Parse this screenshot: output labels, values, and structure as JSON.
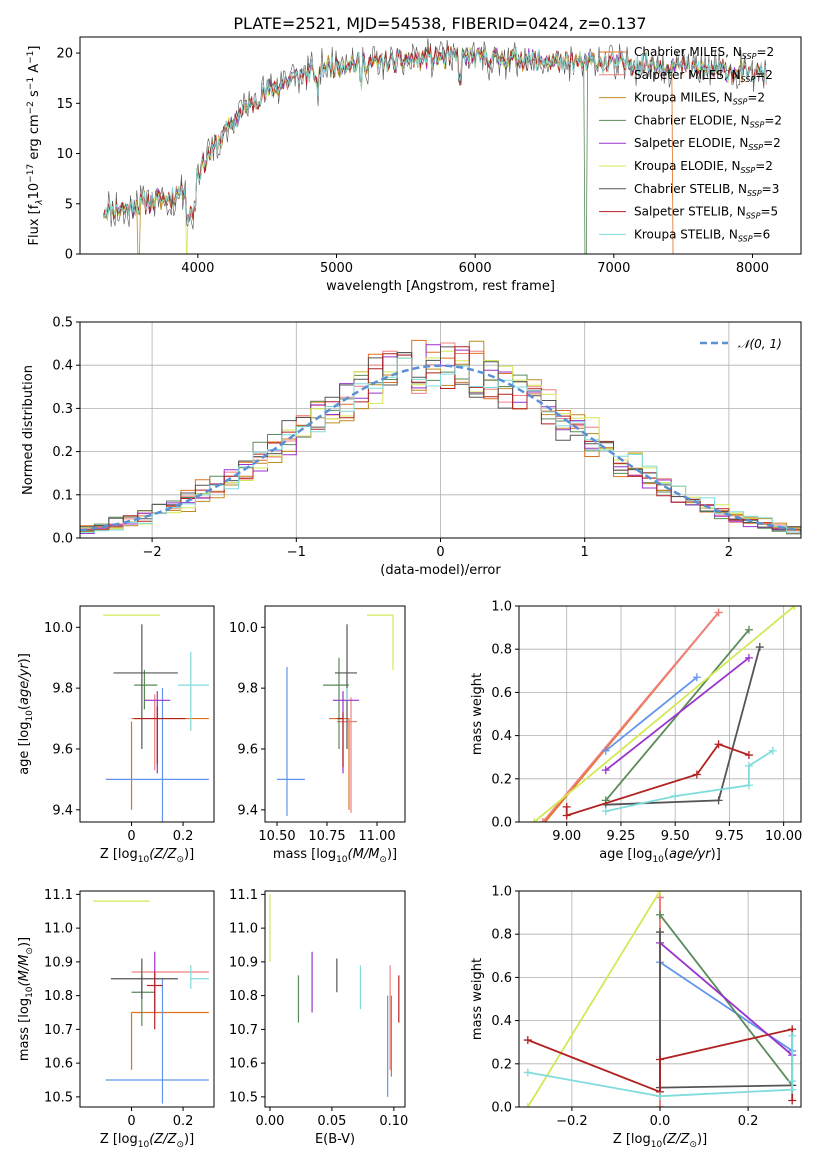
{
  "title": "PLATE=2521, MJD=54538, FIBERID=0424, z=0.137",
  "models": [
    {
      "name": "Chabrier MILES, N",
      "sub": "SSP",
      "tail": "=2",
      "color": "#e07020"
    },
    {
      "name": "Salpeter MILES, N",
      "sub": "SSP",
      "tail": "=2",
      "color": "#f08080"
    },
    {
      "name": "Kroupa MILES, N",
      "sub": "SSP",
      "tail": "=2",
      "color": "#c08a20"
    },
    {
      "name": "Chabrier ELODIE, N",
      "sub": "SSP",
      "tail": "=2",
      "color": "#5a8a5a"
    },
    {
      "name": "Salpeter ELODIE, N",
      "sub": "SSP",
      "tail": "=2",
      "color": "#9932cc"
    },
    {
      "name": "Kroupa ELODIE, N",
      "sub": "SSP",
      "tail": "=2",
      "color": "#d4e857"
    },
    {
      "name": "Chabrier STELIB, N",
      "sub": "SSP",
      "tail": "=3",
      "color": "#555555"
    },
    {
      "name": "Salpeter STELIB, N",
      "sub": "SSP",
      "tail": "=5",
      "color": "#b22222"
    },
    {
      "name": "Kroupa STELIB, N",
      "sub": "SSP",
      "tail": "=6",
      "color": "#80dcdc"
    }
  ],
  "colors": {
    "kroupa_miles_line": "#6495ed",
    "gauss": "#5b8fd6",
    "grid": "#b0b0b0"
  },
  "chart_data": [
    {
      "id": "spectrum",
      "type": "line",
      "xlabel": "wavelength [Angstrom, rest frame]",
      "ylabel_parts": [
        "Flux [f",
        "λ",
        "10",
        "−17",
        " erg cm",
        "−2",
        " s",
        "−1",
        " A",
        "−1",
        "]"
      ],
      "xlim": [
        3150,
        8350
      ],
      "ylim": [
        0,
        21.6
      ],
      "xticks": [
        4000,
        5000,
        6000,
        7000,
        8000
      ],
      "yticks": [
        0,
        5,
        10,
        15,
        20
      ],
      "continuum": {
        "x": [
          3320,
          3500,
          3650,
          3800,
          3950,
          4100,
          4300,
          4500,
          4700,
          4900,
          5100,
          5300,
          5500,
          5700,
          5900,
          6100,
          6300,
          6500,
          6700,
          6900,
          7100,
          7300,
          7500,
          7700,
          7900,
          8100
        ],
        "y": [
          4.4,
          4.6,
          5.2,
          5.6,
          7.0,
          10.3,
          13.8,
          16.2,
          17.5,
          18.6,
          19.0,
          19.0,
          19.3,
          19.5,
          19.6,
          19.5,
          19.4,
          19.3,
          19.0,
          19.1,
          19.0,
          18.9,
          18.6,
          18.3,
          18.2,
          18.0
        ]
      },
      "dropouts": [
        3580,
        3910,
        6790,
        7430
      ]
    },
    {
      "id": "residuals",
      "type": "histogram",
      "xlabel": "(data-model)/error",
      "ylabel": "Normed distribution",
      "xlim": [
        -2.5,
        2.5
      ],
      "ylim": [
        0,
        0.5
      ],
      "xticks": [
        -2,
        -1,
        0,
        1,
        2
      ],
      "yticks": [
        0.0,
        0.1,
        0.2,
        0.3,
        0.4,
        0.5
      ],
      "bin_width": 0.1,
      "legend": "𝒩(0, 1)",
      "grid": true
    },
    {
      "id": "age-vs-Z",
      "type": "errorbar",
      "xlabel": "Z [log",
      "xlabel_sub": "10",
      "xlabel_tail": "(Z/Z",
      "xlabel_sun": "⊙",
      "xlabel_end": ")]",
      "ylabel": "age  [log10(age/yr)]",
      "xlim": [
        -0.2,
        0.32
      ],
      "ylim": [
        9.36,
        10.07
      ],
      "xticks": [
        0.0,
        0.2
      ],
      "yticks": [
        9.4,
        9.6,
        9.8,
        10.0
      ],
      "points": [
        {
          "x": 0.0,
          "y": 9.69,
          "xerr": [
            0.0,
            0.0
          ],
          "yerr": [
            0.29,
            0.0
          ],
          "color": "#e07020"
        },
        {
          "x": 0.1,
          "y": 9.7,
          "xerr": [
            0.1,
            0.2
          ],
          "yerr": [
            0.0,
            0.0
          ],
          "color": "#e07020"
        },
        {
          "x": 0.09,
          "y": 9.69,
          "xerr": [
            0.0,
            0.0
          ],
          "yerr": [
            0.16,
            0.09
          ],
          "color": "#f08080"
        },
        {
          "x": 0.12,
          "y": 9.5,
          "xerr": [
            0.22,
            0.18
          ],
          "yerr": [
            0.17,
            0.3
          ],
          "color": "#6495ed"
        },
        {
          "x": 0.05,
          "y": 9.81,
          "xerr": [
            0.04,
            0.05
          ],
          "yerr": [
            0.08,
            0.05
          ],
          "color": "#5a8a5a"
        },
        {
          "x": 0.1,
          "y": 9.76,
          "xerr": [
            0.05,
            0.05
          ],
          "yerr": [
            0.24,
            0.03
          ],
          "color": "#9932cc"
        },
        {
          "x": -0.03,
          "y": 10.04,
          "xerr": [
            0.08,
            0.14
          ],
          "yerr": [
            0.0,
            0.0
          ],
          "color": "#d4e857"
        },
        {
          "x": 0.04,
          "y": 9.85,
          "xerr": [
            0.11,
            0.14
          ],
          "yerr": [
            0.25,
            0.16
          ],
          "color": "#555555"
        },
        {
          "x": 0.1,
          "y": 9.7,
          "xerr": [
            0.09,
            0.11
          ],
          "yerr": [
            0.15,
            0.04
          ],
          "color": "#b22222"
        },
        {
          "x": 0.23,
          "y": 9.81,
          "xerr": [
            0.05,
            0.07
          ],
          "yerr": [
            0.15,
            0.11
          ],
          "color": "#80dcdc"
        }
      ]
    },
    {
      "id": "age-vs-mass",
      "type": "errorbar",
      "xlabel": "mass [log",
      "xlabel_sub": "10",
      "xlabel_tail": "(M/M",
      "xlabel_sun": "⊙",
      "xlabel_end": ")]",
      "xlim": [
        10.44,
        11.14
      ],
      "ylim": [
        9.36,
        10.07
      ],
      "xticks": [
        10.5,
        10.75,
        11.0
      ],
      "xticklabels": [
        "10.50",
        "10.75",
        "11.00"
      ],
      "yticks": [
        9.4,
        9.6,
        9.8,
        10.0
      ],
      "points": [
        {
          "x": 10.86,
          "y": 9.7,
          "xerr": [
            0.1,
            0.0
          ],
          "yerr": [
            0.3,
            0.0
          ],
          "color": "#e07020"
        },
        {
          "x": 10.87,
          "y": 9.69,
          "xerr": [
            0.07,
            0.03
          ],
          "yerr": [
            0.3,
            0.08
          ],
          "color": "#f08080"
        },
        {
          "x": 10.55,
          "y": 9.5,
          "xerr": [
            0.05,
            0.09
          ],
          "yerr": [
            0.12,
            0.37
          ],
          "color": "#6495ed"
        },
        {
          "x": 10.81,
          "y": 9.81,
          "xerr": [
            0.08,
            0.05
          ],
          "yerr": [
            0.21,
            0.09
          ],
          "color": "#5a8a5a"
        },
        {
          "x": 10.83,
          "y": 9.76,
          "xerr": [
            0.05,
            0.08
          ],
          "yerr": [
            0.24,
            0.03
          ],
          "color": "#9932cc"
        },
        {
          "x": 11.08,
          "y": 10.04,
          "xerr": [
            0.13,
            0.0
          ],
          "yerr": [
            0.18,
            0.0
          ],
          "color": "#d4e857"
        },
        {
          "x": 10.85,
          "y": 9.85,
          "xerr": [
            0.06,
            0.05
          ],
          "yerr": [
            0.25,
            0.16
          ],
          "color": "#555555"
        },
        {
          "x": 10.83,
          "y": 9.7,
          "xerr": [
            0.03,
            0.0
          ],
          "yerr": [
            0.16,
            0.02
          ],
          "color": "#b22222"
        },
        {
          "x": 10.85,
          "y": 9.8,
          "xerr": [
            0.0,
            0.0
          ],
          "yerr": [
            0.04,
            0.0
          ],
          "color": "#80dcdc"
        }
      ]
    },
    {
      "id": "mass-weight-vs-age",
      "type": "line",
      "xlabel": "age  [log10(age/yr)]",
      "ylabel": "mass weight",
      "xlim": [
        8.78,
        10.08
      ],
      "ylim": [
        0,
        1
      ],
      "xticks": [
        9.0,
        9.25,
        9.5,
        9.75,
        10.0
      ],
      "xticklabels": [
        "9.00",
        "9.25",
        "9.50",
        "9.75",
        "10.00"
      ],
      "yticks": [
        0.0,
        0.2,
        0.4,
        0.6,
        0.8,
        1.0
      ],
      "grid": true,
      "series": [
        {
          "color": "#e07020",
          "x": [
            8.9,
            9.7
          ],
          "y": [
            0.0,
            0.97
          ]
        },
        {
          "color": "#f08080",
          "x": [
            8.89,
            9.7
          ],
          "y": [
            0.0,
            0.97
          ]
        },
        {
          "color": "#6495ed",
          "x": [
            9.18,
            9.6
          ],
          "y": [
            0.33,
            0.67
          ]
        },
        {
          "color": "#5a8a5a",
          "x": [
            9.18,
            9.84
          ],
          "y": [
            0.1,
            0.89
          ]
        },
        {
          "color": "#9932cc",
          "x": [
            9.18,
            9.84
          ],
          "y": [
            0.24,
            0.76
          ]
        },
        {
          "color": "#d4e857",
          "x": [
            8.85,
            10.05
          ],
          "y": [
            0.0,
            1.0
          ]
        },
        {
          "color": "#555555",
          "x": [
            9.18,
            9.7,
            9.89
          ],
          "y": [
            0.08,
            0.1,
            0.81
          ]
        },
        {
          "color": "#b22222",
          "x": [
            9.0,
            9.0,
            9.6,
            9.7,
            9.84
          ],
          "y": [
            0.07,
            0.03,
            0.22,
            0.36,
            0.31
          ]
        },
        {
          "color": "#80dcdc",
          "x": [
            9.18,
            9.5,
            9.84,
            9.84,
            9.95
          ],
          "y": [
            0.05,
            0.12,
            0.17,
            0.26,
            0.33
          ]
        }
      ]
    },
    {
      "id": "mass-vs-Z",
      "type": "errorbar",
      "xlabel": "Z [log",
      "xlabel_sub": "10",
      "xlabel_tail": "(Z/Z",
      "xlabel_sun": "⊙",
      "xlabel_end": ")]",
      "ylabel": "mass [log10(M/M⊙)]",
      "xlim": [
        -0.2,
        0.32
      ],
      "ylim": [
        10.47,
        11.11
      ],
      "xticks": [
        0.0,
        0.2
      ],
      "yticks": [
        10.5,
        10.6,
        10.7,
        10.8,
        10.9,
        11.0,
        11.1
      ],
      "points": [
        {
          "x": 0.0,
          "y": 10.75,
          "xerr": [
            0.0,
            0.3
          ],
          "yerr": [
            0.17,
            0.0
          ],
          "color": "#e07020"
        },
        {
          "x": 0.09,
          "y": 10.87,
          "xerr": [
            0.09,
            0.21
          ],
          "yerr": [
            0.0,
            0.0
          ],
          "color": "#f08080"
        },
        {
          "x": 0.12,
          "y": 10.55,
          "xerr": [
            0.22,
            0.18
          ],
          "yerr": [
            0.07,
            0.3
          ],
          "color": "#6495ed"
        },
        {
          "x": 0.04,
          "y": 10.81,
          "xerr": [
            0.04,
            0.05
          ],
          "yerr": [
            0.1,
            0.05
          ],
          "color": "#5a8a5a"
        },
        {
          "x": 0.09,
          "y": 10.83,
          "xerr": [
            0.0,
            0.0
          ],
          "yerr": [
            0.08,
            0.1
          ],
          "color": "#9932cc"
        },
        {
          "x": -0.03,
          "y": 11.08,
          "xerr": [
            0.12,
            0.1
          ],
          "yerr": [
            0.0,
            0.0
          ],
          "color": "#d4e857"
        },
        {
          "x": 0.04,
          "y": 10.85,
          "xerr": [
            0.12,
            0.14
          ],
          "yerr": [
            0.06,
            0.06
          ],
          "color": "#555555"
        },
        {
          "x": 0.09,
          "y": 10.83,
          "xerr": [
            0.03,
            0.03
          ],
          "yerr": [
            0.13,
            0.04
          ],
          "color": "#b22222"
        },
        {
          "x": 0.23,
          "y": 10.85,
          "xerr": [
            0.0,
            0.07
          ],
          "yerr": [
            0.03,
            0.04
          ],
          "color": "#80dcdc"
        }
      ]
    },
    {
      "id": "mass-vs-EBV",
      "type": "errorbar",
      "xlabel": "E(B-V)",
      "xlim": [
        -0.004,
        0.109
      ],
      "ylim": [
        10.47,
        11.11
      ],
      "xticks": [
        0.0,
        0.05,
        0.1
      ],
      "xticklabels": [
        "0.00",
        "0.05",
        "0.10"
      ],
      "yticks": [
        10.5,
        10.6,
        10.7,
        10.8,
        10.9,
        11.0,
        11.1
      ],
      "points": [
        {
          "x": 0.0,
          "y": 11.0,
          "xerr": [
            0,
            0
          ],
          "yerr": [
            0.1,
            0.1
          ],
          "color": "#d4e857"
        },
        {
          "x": 0.023,
          "y": 10.79,
          "xerr": [
            0,
            0
          ],
          "yerr": [
            0.07,
            0.07
          ],
          "color": "#5a8a5a"
        },
        {
          "x": 0.034,
          "y": 10.84,
          "xerr": [
            0,
            0
          ],
          "yerr": [
            0.09,
            0.09
          ],
          "color": "#9932cc"
        },
        {
          "x": 0.054,
          "y": 10.85,
          "xerr": [
            0,
            0
          ],
          "yerr": [
            0.04,
            0.06
          ],
          "color": "#555555"
        },
        {
          "x": 0.073,
          "y": 10.81,
          "xerr": [
            0,
            0
          ],
          "yerr": [
            0.05,
            0.08
          ],
          "color": "#80dcdc"
        },
        {
          "x": 0.095,
          "y": 10.68,
          "xerr": [
            0,
            0
          ],
          "yerr": [
            0.18,
            0.12
          ],
          "color": "#6495ed"
        },
        {
          "x": 0.097,
          "y": 10.78,
          "xerr": [
            0,
            0
          ],
          "yerr": [
            0.2,
            0.11
          ],
          "color": "#f08080"
        },
        {
          "x": 0.098,
          "y": 10.75,
          "xerr": [
            0,
            0
          ],
          "yerr": [
            0.19,
            0.05
          ],
          "color": "#e07020"
        },
        {
          "x": 0.104,
          "y": 10.79,
          "xerr": [
            0,
            0
          ],
          "yerr": [
            0.07,
            0.07
          ],
          "color": "#b22222"
        }
      ]
    },
    {
      "id": "mass-weight-vs-Z",
      "type": "line",
      "xlabel": "Z [log",
      "xlabel_sub": "10",
      "xlabel_tail": "(Z/Z",
      "xlabel_sun": "⊙",
      "xlabel_end": ")]",
      "ylabel": "mass weight",
      "xlim": [
        -0.32,
        0.32
      ],
      "ylim": [
        0,
        1
      ],
      "xticks": [
        -0.2,
        0.0,
        0.2
      ],
      "xticklabels": [
        "−0.2",
        "0.0",
        "0.2"
      ],
      "yticks": [
        0.0,
        0.2,
        0.4,
        0.6,
        0.8,
        1.0
      ],
      "grid": true,
      "series": [
        {
          "color": "#e07020",
          "x": [
            0.0,
            0.0
          ],
          "y": [
            0.0,
            0.97
          ]
        },
        {
          "color": "#f08080",
          "x": [
            0.0,
            0.0
          ],
          "y": [
            0.0,
            0.97
          ]
        },
        {
          "color": "#6495ed",
          "x": [
            0.0,
            0.3
          ],
          "y": [
            0.67,
            0.26
          ]
        },
        {
          "color": "#5a8a5a",
          "x": [
            0.0,
            0.3
          ],
          "y": [
            0.89,
            0.1
          ]
        },
        {
          "color": "#9932cc",
          "x": [
            0.0,
            0.3
          ],
          "y": [
            0.76,
            0.24
          ]
        },
        {
          "color": "#d4e857",
          "x": [
            -0.3,
            0.0
          ],
          "y": [
            0.0,
            1.0
          ]
        },
        {
          "color": "#555555",
          "x": [
            0.0,
            0.0,
            0.3
          ],
          "y": [
            0.81,
            0.09,
            0.1
          ]
        },
        {
          "color": "#b22222",
          "x": [
            -0.3,
            0.0,
            0.0,
            0.3,
            0.3
          ],
          "y": [
            0.31,
            0.07,
            0.22,
            0.36,
            0.03
          ]
        },
        {
          "color": "#80dcdc",
          "x": [
            -0.3,
            0.0,
            0.3,
            0.3,
            0.3
          ],
          "y": [
            0.16,
            0.05,
            0.08,
            0.12,
            0.33
          ]
        }
      ]
    }
  ]
}
